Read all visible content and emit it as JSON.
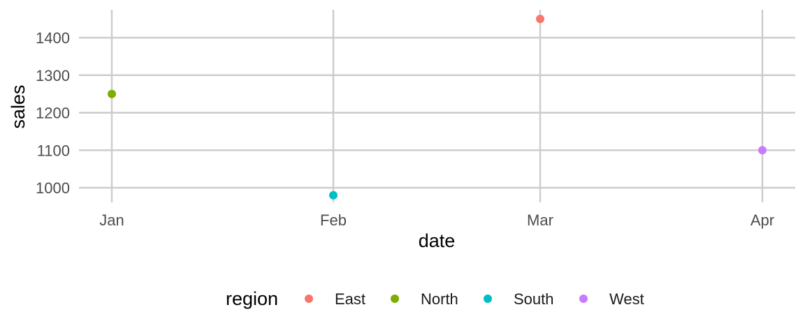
{
  "chart_data": {
    "type": "scatter",
    "title": "",
    "xlabel": "date",
    "ylabel": "sales",
    "x_categories": [
      "Jan",
      "Feb",
      "Mar",
      "Apr"
    ],
    "y_ticks": [
      1000,
      1100,
      1200,
      1300,
      1400
    ],
    "ylim": [
      960,
      1475
    ],
    "grid": true,
    "legend": {
      "title": "region",
      "position": "bottom",
      "entries": [
        "East",
        "North",
        "South",
        "West"
      ]
    },
    "colors": {
      "East": "#F8766D",
      "North": "#7CAE00",
      "South": "#00BFC4",
      "West": "#C77CFF"
    },
    "points": [
      {
        "x": "Jan",
        "y": 1250,
        "region": "North"
      },
      {
        "x": "Feb",
        "y": 980,
        "region": "South"
      },
      {
        "x": "Mar",
        "y": 1450,
        "region": "East"
      },
      {
        "x": "Apr",
        "y": 1100,
        "region": "West"
      }
    ]
  }
}
